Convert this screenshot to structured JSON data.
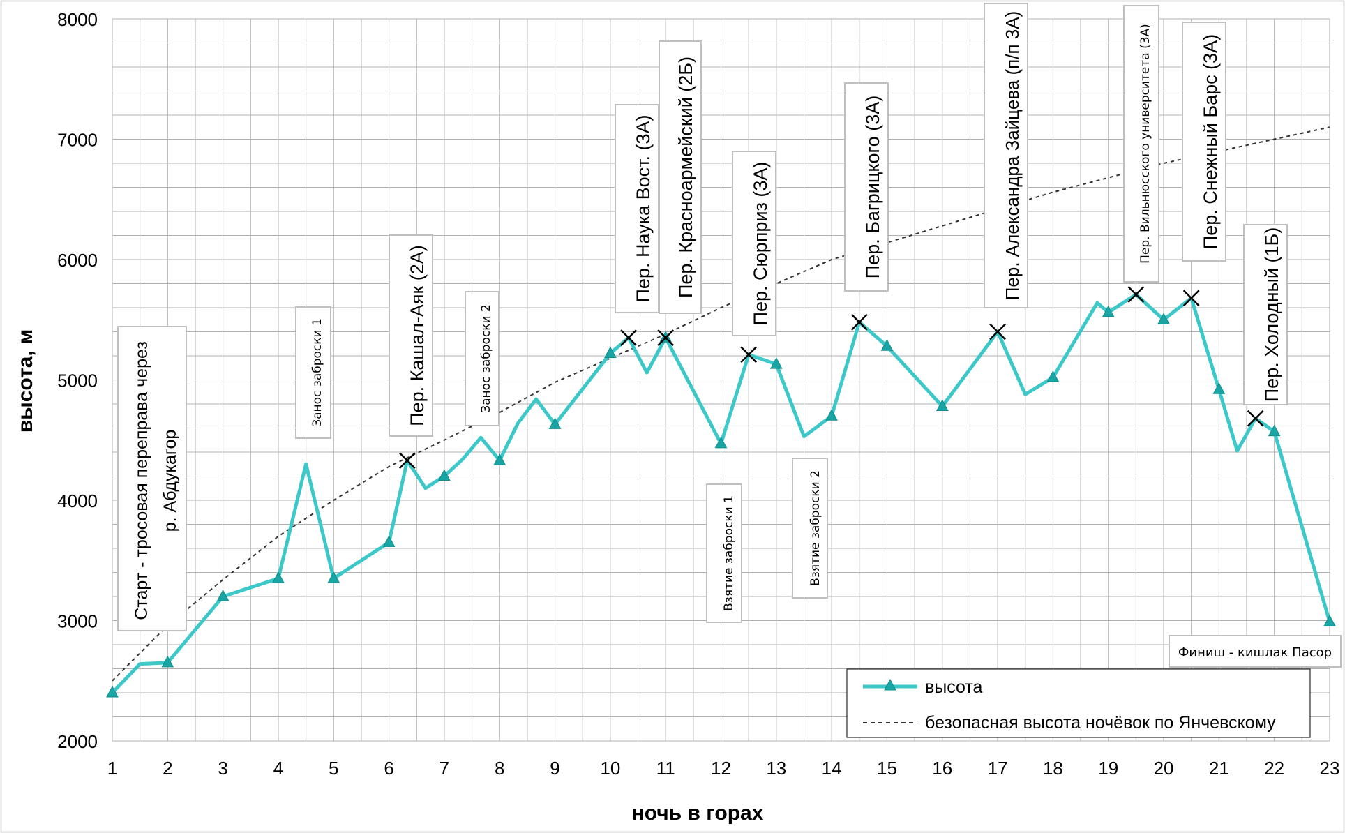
{
  "chart_data": {
    "type": "line",
    "xlabel": "ночь в горах",
    "ylabel": "высота, м",
    "xlim": [
      1,
      23
    ],
    "ylim": [
      2000,
      8000
    ],
    "xticks": [
      "1",
      "2",
      "3",
      "4",
      "5",
      "6",
      "7",
      "8",
      "9",
      "10",
      "11",
      "12",
      "13",
      "14",
      "15",
      "16",
      "17",
      "18",
      "19",
      "20",
      "21",
      "22",
      "23"
    ],
    "yticks": [
      "2000",
      "3000",
      "4000",
      "5000",
      "6000",
      "7000",
      "8000"
    ],
    "grid": true,
    "legend_position": "bottom-right",
    "colors": {
      "height": "#3cc8c8",
      "marker": "#1aa5a5",
      "safe": "#333333",
      "grid": "#b0b0b0"
    },
    "series": [
      {
        "name": "высота",
        "style": "solid-with-triangle-markers",
        "points": [
          {
            "x": 1,
            "y": 2400,
            "m": true
          },
          {
            "x": 1.5,
            "y": 2640,
            "m": false
          },
          {
            "x": 2,
            "y": 2650,
            "m": true
          },
          {
            "x": 3,
            "y": 3200,
            "m": true
          },
          {
            "x": 4,
            "y": 3350,
            "m": true
          },
          {
            "x": 4.5,
            "y": 4300,
            "m": false
          },
          {
            "x": 5,
            "y": 3350,
            "m": true
          },
          {
            "x": 6,
            "y": 3650,
            "m": true
          },
          {
            "x": 6.33,
            "y": 4330,
            "m": false
          },
          {
            "x": 6.66,
            "y": 4100,
            "m": false
          },
          {
            "x": 7,
            "y": 4200,
            "m": true
          },
          {
            "x": 7.33,
            "y": 4340,
            "m": false
          },
          {
            "x": 7.66,
            "y": 4520,
            "m": false
          },
          {
            "x": 8,
            "y": 4330,
            "m": true
          },
          {
            "x": 8.33,
            "y": 4640,
            "m": false
          },
          {
            "x": 8.66,
            "y": 4840,
            "m": false
          },
          {
            "x": 9,
            "y": 4630,
            "m": true
          },
          {
            "x": 10,
            "y": 5220,
            "m": true
          },
          {
            "x": 10.33,
            "y": 5350,
            "m": false
          },
          {
            "x": 10.66,
            "y": 5060,
            "m": false
          },
          {
            "x": 11,
            "y": 5350,
            "m": true
          },
          {
            "x": 12,
            "y": 4470,
            "m": true
          },
          {
            "x": 12.5,
            "y": 5210,
            "m": false
          },
          {
            "x": 13,
            "y": 5130,
            "m": true
          },
          {
            "x": 13.5,
            "y": 4530,
            "m": false
          },
          {
            "x": 14,
            "y": 4700,
            "m": true
          },
          {
            "x": 14.5,
            "y": 5480,
            "m": false
          },
          {
            "x": 15,
            "y": 5280,
            "m": true
          },
          {
            "x": 16,
            "y": 4780,
            "m": true
          },
          {
            "x": 17,
            "y": 5400,
            "m": false
          },
          {
            "x": 17.5,
            "y": 4880,
            "m": false
          },
          {
            "x": 18,
            "y": 5020,
            "m": true
          },
          {
            "x": 18.8,
            "y": 5640,
            "m": false
          },
          {
            "x": 19,
            "y": 5560,
            "m": true
          },
          {
            "x": 19.5,
            "y": 5710,
            "m": false
          },
          {
            "x": 20,
            "y": 5500,
            "m": true
          },
          {
            "x": 20.5,
            "y": 5680,
            "m": false
          },
          {
            "x": 21,
            "y": 4920,
            "m": true
          },
          {
            "x": 21.33,
            "y": 4410,
            "m": false
          },
          {
            "x": 21.66,
            "y": 4680,
            "m": false
          },
          {
            "x": 22,
            "y": 4570,
            "m": true
          },
          {
            "x": 23,
            "y": 2990,
            "m": true
          }
        ]
      },
      {
        "name": "безопасная высота ночёвок по Янчевскому",
        "style": "dotted",
        "x": [
          1,
          2,
          3,
          4,
          5,
          6,
          7,
          8,
          9,
          10,
          11,
          12,
          13,
          14,
          15,
          16,
          17,
          18,
          19,
          20,
          21,
          22,
          23
        ],
        "y": [
          2500,
          2960,
          3340,
          3700,
          4000,
          4280,
          4500,
          4730,
          4980,
          5180,
          5380,
          5600,
          5800,
          6000,
          6140,
          6280,
          6420,
          6560,
          6680,
          6800,
          6900,
          7000,
          7100
        ]
      }
    ],
    "passes": [
      {
        "x": 6.33,
        "y": 4330
      },
      {
        "x": 10.33,
        "y": 5350
      },
      {
        "x": 11,
        "y": 5350
      },
      {
        "x": 12.5,
        "y": 5210
      },
      {
        "x": 14.5,
        "y": 5480
      },
      {
        "x": 17,
        "y": 5400
      },
      {
        "x": 19.5,
        "y": 5710
      },
      {
        "x": 20.5,
        "y": 5680
      },
      {
        "x": 21.66,
        "y": 4680
      }
    ],
    "annotations": [
      {
        "id": "start",
        "text": "Старт - тросовая переправа через р. Абдукагор"
      },
      {
        "id": "zanos1",
        "text": "Занос заброски 1"
      },
      {
        "id": "kashal",
        "text": "Пер. Кашал-Аяк (2А)"
      },
      {
        "id": "zanos2",
        "text": "Занос заброски 2"
      },
      {
        "id": "nauka",
        "text": "Пер. Наука Вост. (3А)"
      },
      {
        "id": "krasno",
        "text": "Пер. Красноармейский (2Б)"
      },
      {
        "id": "vzyatie1",
        "text": "Взятие заброски 1"
      },
      {
        "id": "surpriz",
        "text": "Пер. Сюрприз (3А)"
      },
      {
        "id": "vzyatie2",
        "text": "Взятие заброски 2"
      },
      {
        "id": "bagr",
        "text": "Пер. Багрицкого (3А)"
      },
      {
        "id": "zaytsev",
        "text": "Пер. Александра Зайцева (п/п 3А)"
      },
      {
        "id": "vilnius",
        "text": "Пер. Вильнюсского университета (3А)"
      },
      {
        "id": "snezh",
        "text": "Пер. Снежный Барс (3А)"
      },
      {
        "id": "holod",
        "text": "Пер. Холодный (1Б)"
      },
      {
        "id": "finish",
        "text": "Финиш - кишлак Пасор"
      }
    ]
  }
}
